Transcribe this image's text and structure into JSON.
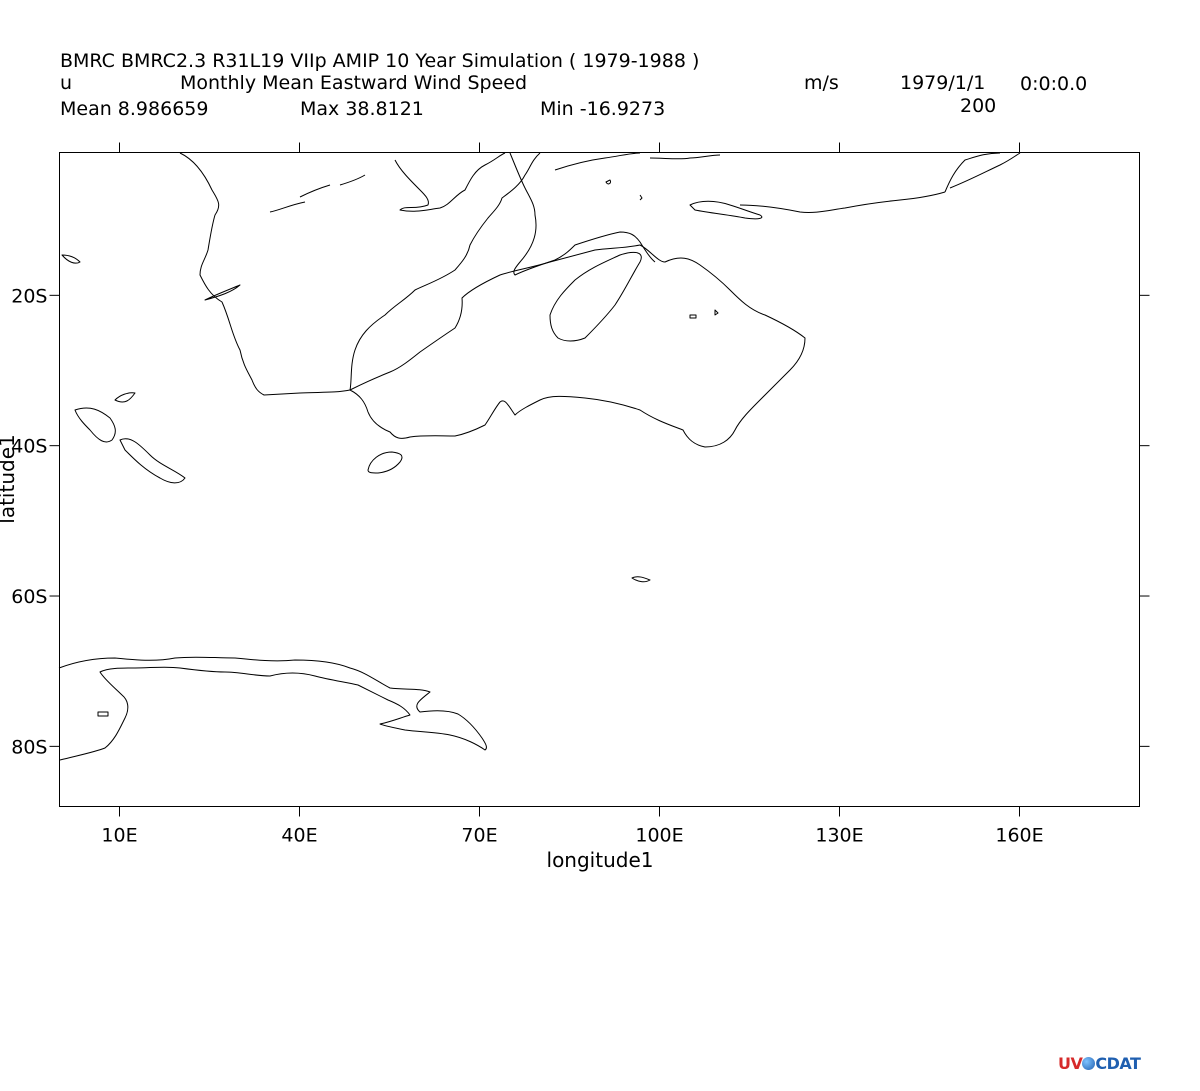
{
  "header": {
    "title": "BMRC BMRC2.3 R31L19 VIIp AMIP 10 Year Simulation ( 1979-1988 )",
    "var_name": "u",
    "long_name": "Monthly Mean Eastward Wind Speed",
    "units": "m/s",
    "date": "1979/1/1",
    "time": "0:0:0.0",
    "level": "200",
    "mean": "Mean 8.986659",
    "max": "Max 38.8121",
    "min": "Min -16.9273"
  },
  "chart_data": {
    "type": "map",
    "title": "BMRC BMRC2.3 R31L19 VIIp AMIP 10 Year Simulation ( 1979-1988 )",
    "xlabel": "longitude1",
    "ylabel": "latitude1",
    "xlim": [
      0,
      180
    ],
    "ylim": [
      -88,
      -1
    ],
    "x_ticks": [
      {
        "value": 10,
        "label": "10E"
      },
      {
        "value": 40,
        "label": "40E"
      },
      {
        "value": 70,
        "label": "70E"
      },
      {
        "value": 100,
        "label": "100E"
      },
      {
        "value": 130,
        "label": "130E"
      },
      {
        "value": 160,
        "label": "160E"
      }
    ],
    "y_ticks": [
      {
        "value": -20,
        "label": "20S"
      },
      {
        "value": -40,
        "label": "40S"
      },
      {
        "value": -60,
        "label": "60S"
      },
      {
        "value": -80,
        "label": "80S"
      }
    ],
    "coastline_color": "#000000"
  },
  "logo": {
    "text_a": "UV",
    "text_b": "CDAT",
    "color_a": "#d62a2a",
    "color_b": "#1f5fb0"
  }
}
